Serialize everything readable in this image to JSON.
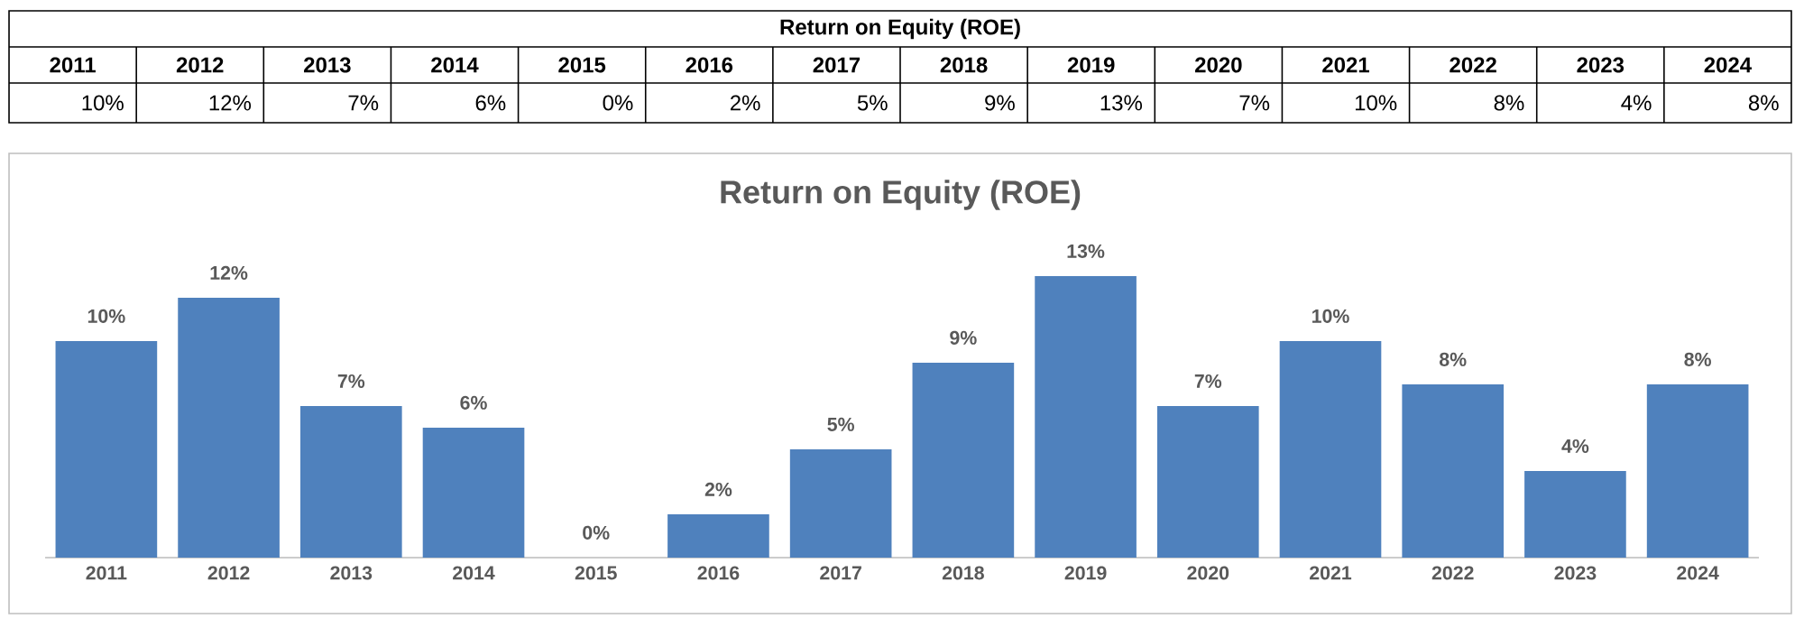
{
  "chart_data": {
    "type": "bar",
    "title": "Return on Equity (ROE)",
    "annotations": [
      "Return on Equity (ROE)"
    ],
    "categories": [
      "2011",
      "2012",
      "2013",
      "2014",
      "2015",
      "2016",
      "2017",
      "2018",
      "2019",
      "2020",
      "2021",
      "2022",
      "2023",
      "2024"
    ],
    "values": [
      10,
      12,
      7,
      6,
      0,
      2,
      5,
      9,
      13,
      7,
      10,
      8,
      4,
      8
    ],
    "value_labels": [
      "10%",
      "12%",
      "7%",
      "6%",
      "0%",
      "2%",
      "5%",
      "9%",
      "13%",
      "7%",
      "10%",
      "8%",
      "4%",
      "8%"
    ],
    "color": "#4f81bd"
  }
}
